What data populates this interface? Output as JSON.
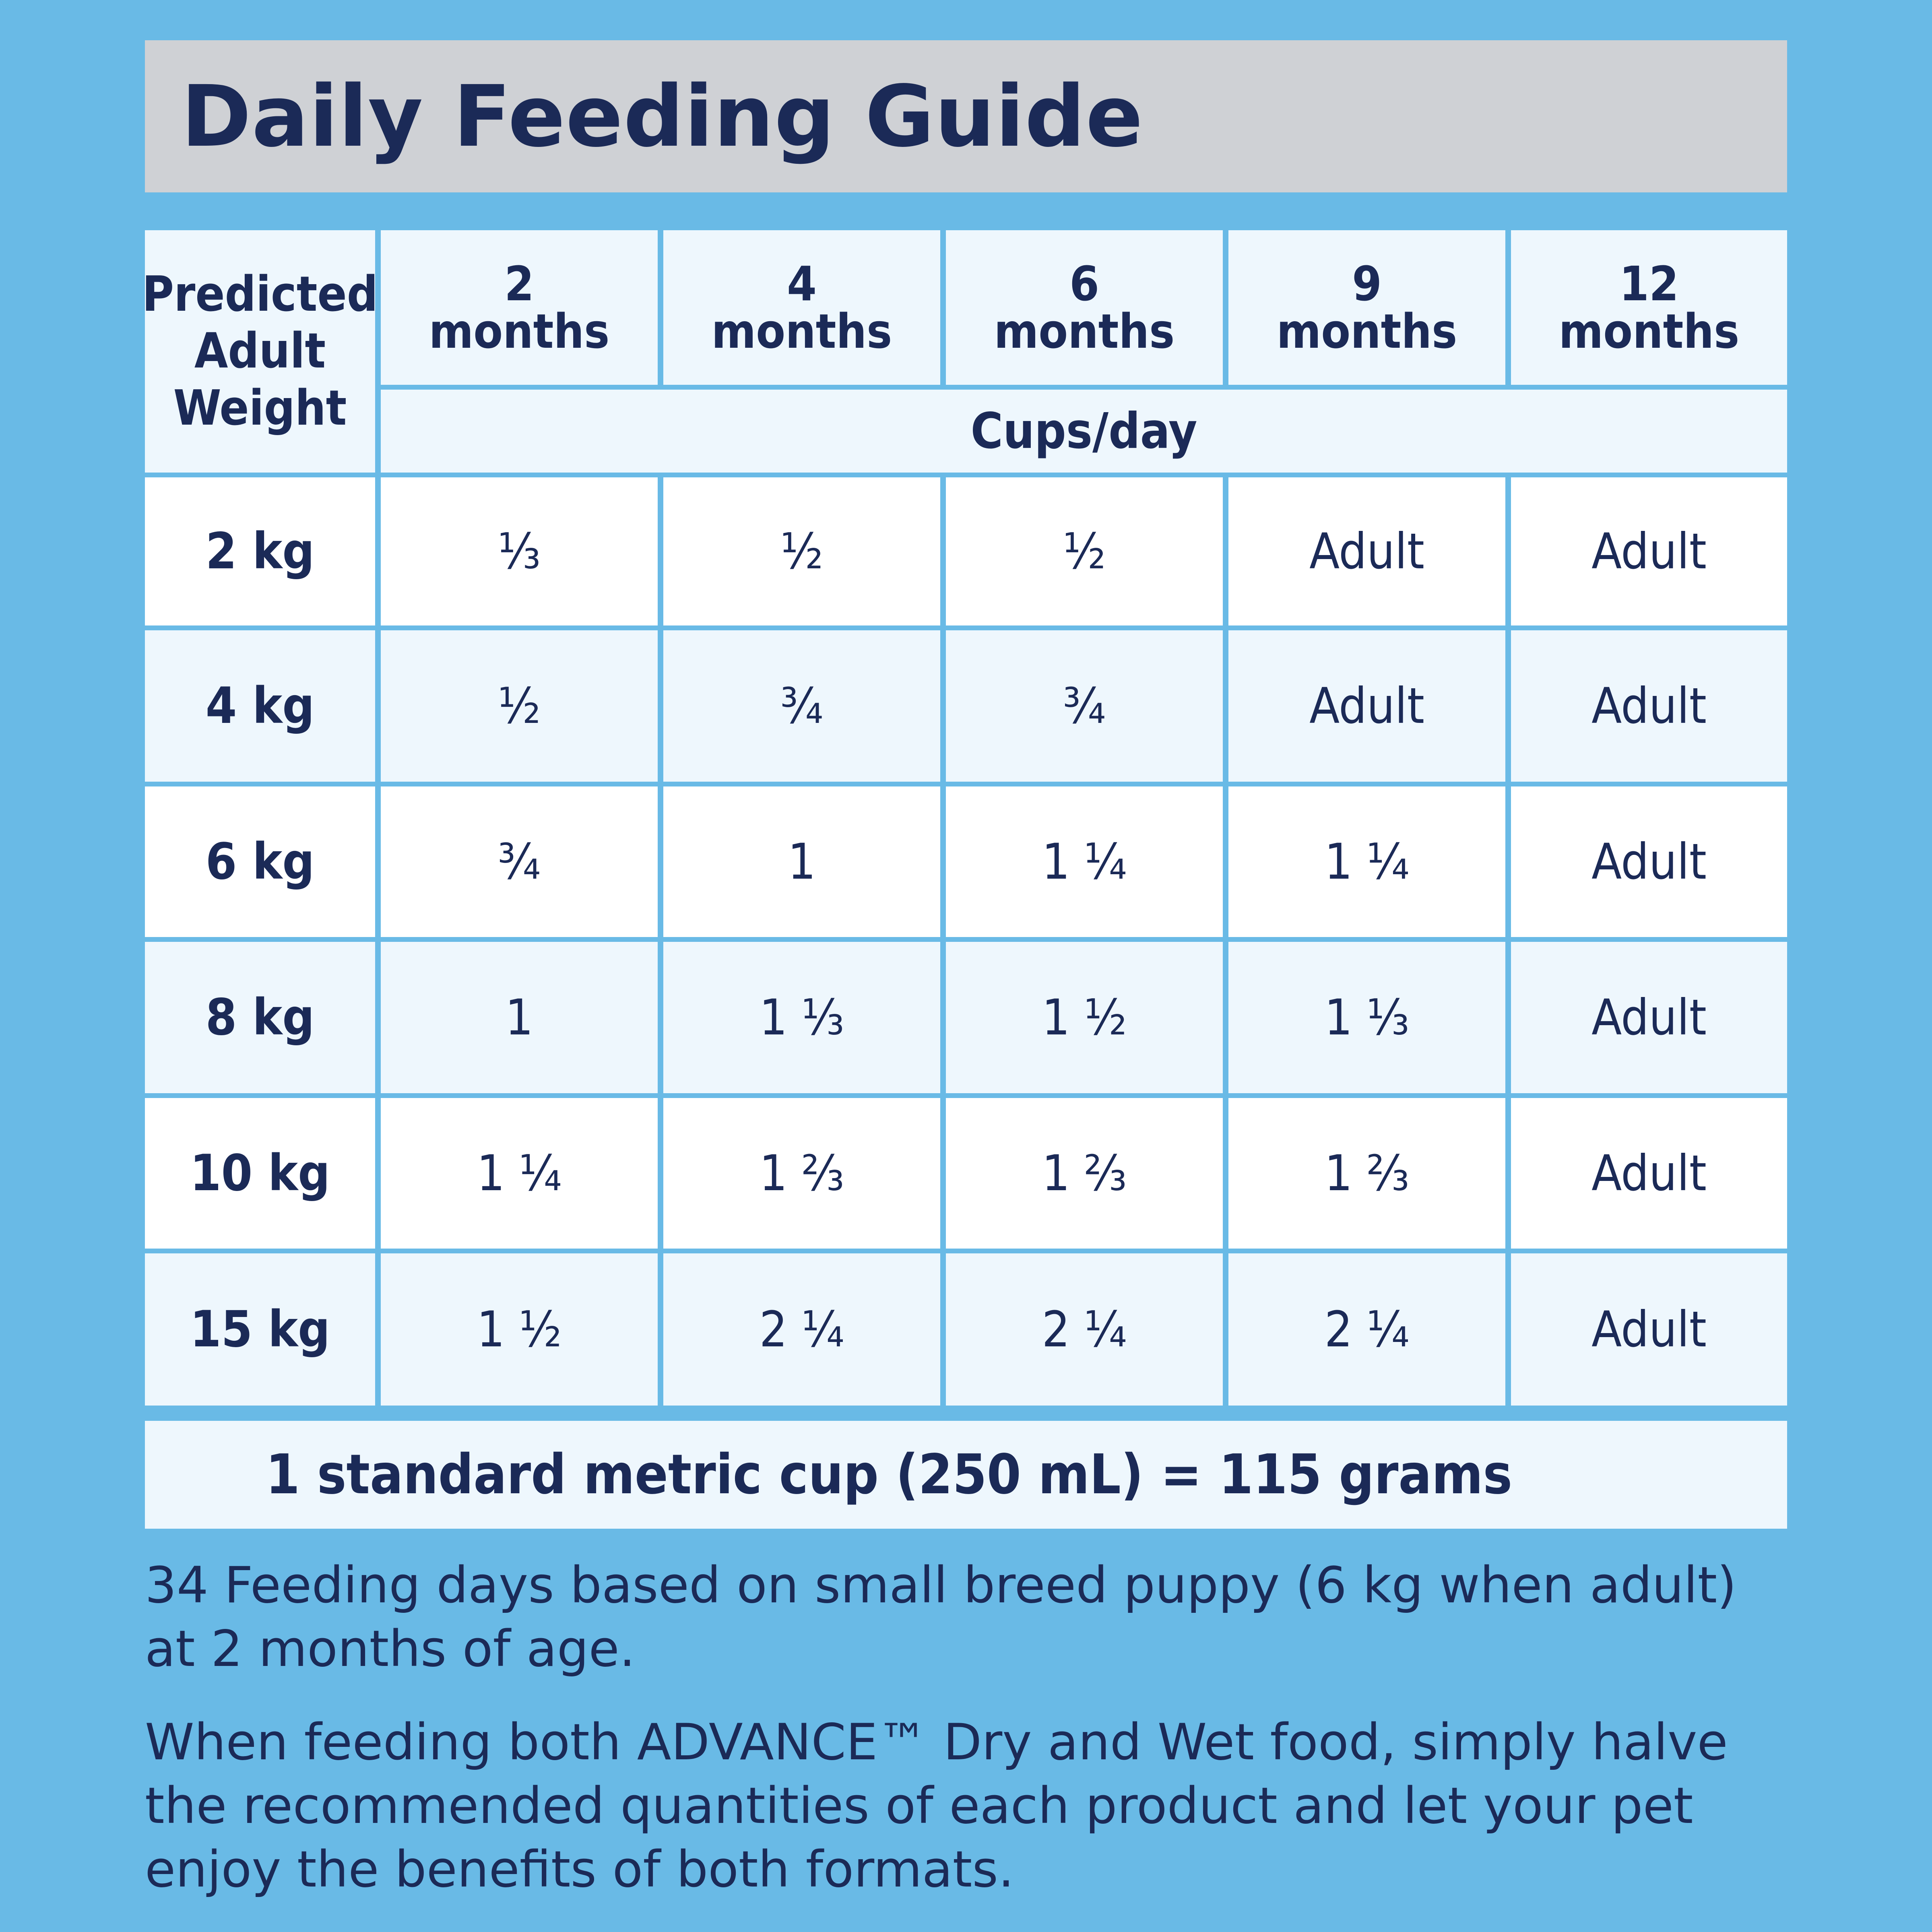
{
  "title": "Daily Feeding Guide",
  "table": {
    "corner_header": "Predicted\nAdult\nWeight",
    "age_columns": [
      {
        "number": "2",
        "unit": "months"
      },
      {
        "number": "4",
        "unit": "months"
      },
      {
        "number": "6",
        "unit": "months"
      },
      {
        "number": "9",
        "unit": "months"
      },
      {
        "number": "12",
        "unit": "months"
      }
    ],
    "unit_label": "Cups/day",
    "rows": [
      {
        "weight": "2 kg",
        "values": [
          "⅓",
          "½",
          "½",
          "Adult",
          "Adult"
        ]
      },
      {
        "weight": "4 kg",
        "values": [
          "½",
          "¾",
          "¾",
          "Adult",
          "Adult"
        ]
      },
      {
        "weight": "6 kg",
        "values": [
          "¾",
          "1",
          "1 ¼",
          "1 ¼",
          "Adult"
        ]
      },
      {
        "weight": "8 kg",
        "values": [
          "1",
          "1 ⅓",
          "1 ½",
          "1 ⅓",
          "Adult"
        ]
      },
      {
        "weight": "10 kg",
        "values": [
          "1 ¼",
          "1 ⅔",
          "1 ⅔",
          "1 ⅔",
          "Adult"
        ]
      },
      {
        "weight": "15 kg",
        "values": [
          "1 ½",
          "2 ¼",
          "2 ¼",
          "2 ¼",
          "Adult"
        ]
      }
    ]
  },
  "standard_cup_note": "1 standard metric cup (250 mL) = 115 grams",
  "notes": [
    "34 Feeding days based on small breed puppy (6 kg when adult) at 2 months of age.",
    "When feeding both ADVANCE™ Dry and Wet food, simply halve the recommended quantities of each product and let your pet enjoy the benefits of both formats."
  ],
  "colors": {
    "page_background": "#69bae6",
    "title_bar": "#cfd1d5",
    "text": "#1b2a57",
    "header_cell": "#eef7fd",
    "row_light": "#ffffff",
    "row_alt": "#eef7fd"
  }
}
